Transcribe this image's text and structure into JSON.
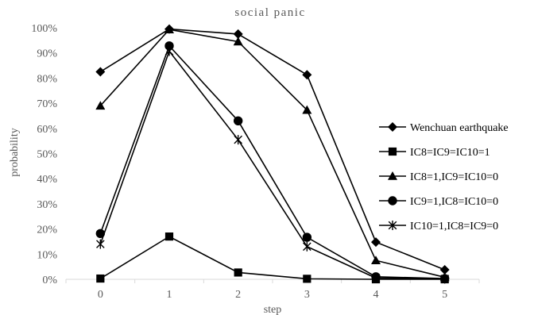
{
  "chart_data": {
    "type": "line",
    "title": "social panic",
    "xlabel": "step",
    "ylabel": "probability",
    "x": [
      0,
      1,
      2,
      3,
      4,
      5
    ],
    "x_tick_labels": [
      "0",
      "1",
      "2",
      "3",
      "4",
      "5"
    ],
    "ylim": [
      0,
      100
    ],
    "y_tick_labels": [
      "0%",
      "10%",
      "20%",
      "30%",
      "40%",
      "50%",
      "60%",
      "70%",
      "80%",
      "90%",
      "100%"
    ],
    "y_unit": "percent",
    "grid": false,
    "legend_position": "right",
    "series": [
      {
        "name": "Wenchuan earthquake",
        "marker": "diamond",
        "color": "#000000",
        "values": [
          82.5,
          99.5,
          97.5,
          81.3,
          14.8,
          3.8
        ]
      },
      {
        "name": "IC8=IC9=IC10=1",
        "marker": "square",
        "color": "#000000",
        "values": [
          0.3,
          17.0,
          2.7,
          0.2,
          0.0,
          0.0
        ]
      },
      {
        "name": "IC8=1,IC9=IC10=0",
        "marker": "triangle",
        "color": "#000000",
        "values": [
          69.0,
          99.3,
          94.5,
          67.3,
          7.5,
          0.8
        ]
      },
      {
        "name": "IC9=1,IC8=IC10=0",
        "marker": "circle",
        "color": "#000000",
        "values": [
          18.2,
          92.8,
          63.0,
          16.7,
          1.0,
          0.3
        ]
      },
      {
        "name": "IC10=1,IC8=IC9=0",
        "marker": "asterisk",
        "color": "#000000",
        "values": [
          14.0,
          90.7,
          55.5,
          13.0,
          0.5,
          0.2
        ]
      }
    ]
  }
}
